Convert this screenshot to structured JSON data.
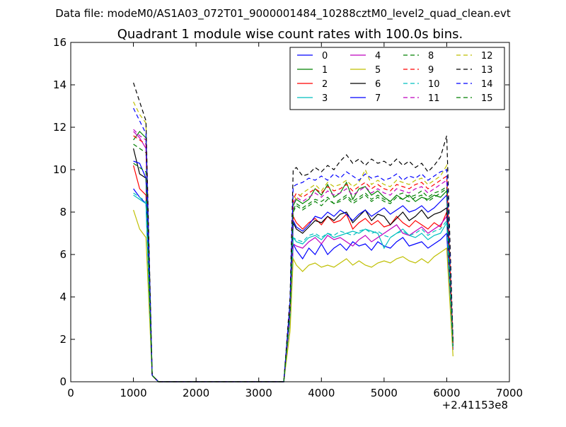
{
  "header": {
    "data_file": "Data file: modeM0/AS1A03_072T01_9000001484_10288cztM0_level2_quad_clean.evt"
  },
  "chart_data": {
    "type": "line",
    "title": "Quadrant 1 module wise count rates with 100.0s bins.",
    "xlabel": "",
    "ylabel": "",
    "x_offset_label": "+2.41153e8",
    "xlim": [
      0,
      7000
    ],
    "ylim": [
      0,
      16
    ],
    "x_ticks": [
      0,
      1000,
      2000,
      3000,
      4000,
      5000,
      6000,
      7000
    ],
    "y_ticks": [
      0,
      2,
      4,
      6,
      8,
      10,
      12,
      14,
      16
    ],
    "grid": false,
    "legend_position": "top-right",
    "x": [
      1000,
      1100,
      1200,
      1300,
      1400,
      1500,
      1600,
      1700,
      1800,
      1900,
      2000,
      2100,
      2200,
      2300,
      2400,
      2500,
      2600,
      2700,
      2800,
      2900,
      3000,
      3100,
      3200,
      3300,
      3400,
      3500,
      3550,
      3600,
      3700,
      3800,
      3900,
      4000,
      4100,
      4200,
      4300,
      4400,
      4500,
      4600,
      4700,
      4800,
      4900,
      5000,
      5100,
      5200,
      5300,
      5400,
      5500,
      5600,
      5700,
      5800,
      5900,
      6000,
      6100
    ],
    "series": [
      {
        "name": "0",
        "color": "#0000ff",
        "dash": "solid",
        "values": [
          9.1,
          8.7,
          8.4,
          0.3,
          0,
          0,
          0,
          0,
          0,
          0,
          0,
          0,
          0,
          0,
          0,
          0,
          0,
          0,
          0,
          0,
          0,
          0,
          0,
          0,
          0,
          3.0,
          6.5,
          6.2,
          5.8,
          6.3,
          6.0,
          6.5,
          6.0,
          6.3,
          6.5,
          6.2,
          6.6,
          6.4,
          6.5,
          6.2,
          6.6,
          6.4,
          6.3,
          6.6,
          6.8,
          6.4,
          6.5,
          6.6,
          6.3,
          6.5,
          6.7,
          7.0,
          1.5
        ]
      },
      {
        "name": "1",
        "color": "#008000",
        "dash": "solid",
        "values": [
          11.4,
          11.8,
          11.5,
          0.3,
          0,
          0,
          0,
          0,
          0,
          0,
          0,
          0,
          0,
          0,
          0,
          0,
          0,
          0,
          0,
          0,
          0,
          0,
          0,
          0,
          0,
          3.5,
          8.3,
          8.6,
          8.4,
          8.6,
          9.1,
          8.8,
          9.3,
          8.7,
          8.9,
          9.4,
          8.6,
          9.1,
          9.2,
          8.8,
          9.0,
          8.7,
          8.5,
          8.8,
          8.6,
          8.8,
          8.5,
          8.7,
          8.6,
          8.8,
          8.7,
          9.0,
          1.8
        ]
      },
      {
        "name": "2",
        "color": "#ff0000",
        "dash": "solid",
        "values": [
          10.2,
          9.1,
          8.8,
          0.3,
          0,
          0,
          0,
          0,
          0,
          0,
          0,
          0,
          0,
          0,
          0,
          0,
          0,
          0,
          0,
          0,
          0,
          0,
          0,
          0,
          0,
          3.2,
          7.8,
          7.5,
          7.2,
          7.5,
          7.7,
          7.4,
          7.8,
          7.5,
          7.6,
          7.9,
          7.2,
          7.5,
          7.7,
          7.4,
          7.6,
          7.3,
          7.4,
          7.8,
          7.5,
          7.3,
          7.6,
          7.4,
          7.2,
          7.5,
          7.3,
          8.0,
          1.6
        ]
      },
      {
        "name": "3",
        "color": "#00bfbf",
        "dash": "solid",
        "values": [
          8.8,
          8.6,
          8.4,
          0.3,
          0,
          0,
          0,
          0,
          0,
          0,
          0,
          0,
          0,
          0,
          0,
          0,
          0,
          0,
          0,
          0,
          0,
          0,
          0,
          0,
          0,
          3.0,
          6.8,
          6.6,
          6.5,
          6.8,
          6.9,
          6.7,
          7.0,
          6.8,
          6.9,
          7.0,
          7.1,
          7.0,
          7.2,
          7.1,
          7.0,
          6.3,
          6.8,
          7.0,
          7.2,
          6.9,
          6.8,
          7.0,
          6.7,
          6.9,
          7.0,
          7.5,
          1.5
        ]
      },
      {
        "name": "4",
        "color": "#bf00bf",
        "dash": "solid",
        "values": [
          11.8,
          11.5,
          11.0,
          0.3,
          0,
          0,
          0,
          0,
          0,
          0,
          0,
          0,
          0,
          0,
          0,
          0,
          0,
          0,
          0,
          0,
          0,
          0,
          0,
          0,
          0,
          3.1,
          6.5,
          6.4,
          6.3,
          6.6,
          6.8,
          6.5,
          6.9,
          6.7,
          6.8,
          6.6,
          6.4,
          6.7,
          6.9,
          6.6,
          6.8,
          7.0,
          7.2,
          7.4,
          7.0,
          6.9,
          7.1,
          7.3,
          7.0,
          7.2,
          7.4,
          7.8,
          1.5
        ]
      },
      {
        "name": "5",
        "color": "#bfbf00",
        "dash": "solid",
        "values": [
          8.1,
          7.2,
          6.8,
          0.3,
          0,
          0,
          0,
          0,
          0,
          0,
          0,
          0,
          0,
          0,
          0,
          0,
          0,
          0,
          0,
          0,
          0,
          0,
          0,
          0,
          0,
          2.4,
          5.8,
          5.5,
          5.2,
          5.5,
          5.6,
          5.4,
          5.5,
          5.4,
          5.6,
          5.8,
          5.5,
          5.7,
          5.5,
          5.4,
          5.6,
          5.7,
          5.6,
          5.8,
          5.9,
          5.7,
          5.6,
          5.8,
          5.6,
          5.9,
          6.1,
          6.3,
          1.2
        ]
      },
      {
        "name": "6",
        "color": "#000000",
        "dash": "solid",
        "values": [
          11.0,
          9.8,
          9.6,
          0.3,
          0,
          0,
          0,
          0,
          0,
          0,
          0,
          0,
          0,
          0,
          0,
          0,
          0,
          0,
          0,
          0,
          0,
          0,
          0,
          0,
          0,
          3.4,
          7.5,
          7.2,
          7.0,
          7.3,
          7.6,
          7.5,
          7.8,
          7.6,
          7.9,
          8.0,
          7.5,
          7.8,
          8.1,
          7.6,
          7.9,
          7.8,
          7.4,
          7.7,
          8.0,
          7.6,
          7.8,
          8.1,
          7.7,
          7.9,
          8.0,
          8.2,
          1.7
        ]
      },
      {
        "name": "7",
        "color": "#0000ff",
        "dash": "solid",
        "values": [
          10.4,
          10.3,
          9.6,
          0.3,
          0,
          0,
          0,
          0,
          0,
          0,
          0,
          0,
          0,
          0,
          0,
          0,
          0,
          0,
          0,
          0,
          0,
          0,
          0,
          0,
          0,
          3.3,
          7.6,
          7.3,
          7.1,
          7.4,
          7.8,
          7.7,
          8.0,
          7.8,
          8.1,
          7.9,
          7.6,
          7.9,
          8.1,
          7.8,
          8.0,
          8.2,
          7.9,
          8.1,
          8.3,
          8.0,
          8.1,
          8.3,
          8.0,
          8.2,
          8.5,
          8.8,
          1.7
        ]
      },
      {
        "name": "8",
        "color": "#008000",
        "dash": "dashed",
        "values": [
          11.2,
          11.0,
          10.8,
          0.3,
          0,
          0,
          0,
          0,
          0,
          0,
          0,
          0,
          0,
          0,
          0,
          0,
          0,
          0,
          0,
          0,
          0,
          0,
          0,
          0,
          0,
          3.5,
          8.1,
          8.4,
          8.2,
          8.4,
          8.6,
          8.5,
          8.7,
          8.4,
          8.6,
          8.8,
          8.5,
          8.7,
          8.9,
          8.6,
          8.8,
          8.6,
          8.5,
          8.8,
          8.9,
          8.7,
          8.8,
          9.0,
          8.7,
          8.9,
          9.0,
          9.2,
          1.8
        ]
      },
      {
        "name": "9",
        "color": "#ff0000",
        "dash": "dashed",
        "values": [
          11.6,
          11.4,
          11.2,
          0.3,
          0,
          0,
          0,
          0,
          0,
          0,
          0,
          0,
          0,
          0,
          0,
          0,
          0,
          0,
          0,
          0,
          0,
          0,
          0,
          0,
          0,
          3.5,
          8.6,
          8.9,
          8.7,
          8.9,
          9.1,
          8.9,
          9.2,
          9.0,
          9.1,
          9.3,
          9.0,
          9.2,
          9.4,
          9.1,
          9.3,
          9.1,
          9.0,
          9.3,
          9.2,
          9.1,
          9.3,
          9.4,
          9.1,
          9.3,
          9.5,
          9.7,
          1.8
        ]
      },
      {
        "name": "10",
        "color": "#00bfbf",
        "dash": "dashed",
        "values": [
          8.9,
          8.7,
          8.5,
          0.3,
          0,
          0,
          0,
          0,
          0,
          0,
          0,
          0,
          0,
          0,
          0,
          0,
          0,
          0,
          0,
          0,
          0,
          0,
          0,
          0,
          0,
          3.1,
          6.8,
          6.7,
          6.6,
          6.9,
          7.0,
          6.8,
          7.0,
          6.9,
          7.1,
          7.0,
          6.9,
          7.1,
          7.2,
          7.0,
          7.1,
          6.9,
          6.8,
          7.0,
          7.1,
          6.9,
          7.0,
          7.2,
          6.9,
          7.1,
          7.2,
          7.6,
          1.5
        ]
      },
      {
        "name": "11",
        "color": "#bf00bf",
        "dash": "dashed",
        "values": [
          11.9,
          11.6,
          11.4,
          0.3,
          0,
          0,
          0,
          0,
          0,
          0,
          0,
          0,
          0,
          0,
          0,
          0,
          0,
          0,
          0,
          0,
          0,
          0,
          0,
          0,
          0,
          3.4,
          8.4,
          8.7,
          8.5,
          8.7,
          8.9,
          8.7,
          9.0,
          8.8,
          8.9,
          9.1,
          8.8,
          9.0,
          9.2,
          8.9,
          9.1,
          8.9,
          8.8,
          9.1,
          9.0,
          8.9,
          9.1,
          9.2,
          8.9,
          9.1,
          9.3,
          9.5,
          1.8
        ]
      },
      {
        "name": "12",
        "color": "#bfbf00",
        "dash": "dashed",
        "values": [
          13.2,
          12.6,
          12.2,
          0.3,
          0,
          0,
          0,
          0,
          0,
          0,
          0,
          0,
          0,
          0,
          0,
          0,
          0,
          0,
          0,
          0,
          0,
          0,
          0,
          0,
          0,
          3.6,
          8.8,
          8.6,
          8.9,
          9.1,
          9.3,
          9.0,
          9.4,
          9.2,
          9.3,
          9.5,
          9.2,
          9.4,
          10.0,
          9.3,
          9.5,
          9.3,
          9.2,
          9.5,
          9.4,
          9.3,
          9.5,
          9.6,
          9.3,
          9.5,
          9.7,
          10.2,
          1.9
        ]
      },
      {
        "name": "13",
        "color": "#000000",
        "dash": "dashed",
        "values": [
          14.1,
          13.2,
          12.3,
          0.3,
          0,
          0,
          0,
          0,
          0,
          0,
          0,
          0,
          0,
          0,
          0,
          0,
          0,
          0,
          0,
          0,
          0,
          0,
          0,
          0,
          0,
          4.0,
          10.0,
          10.1,
          9.7,
          9.8,
          10.1,
          9.9,
          10.2,
          10.0,
          10.4,
          10.7,
          10.3,
          10.5,
          10.2,
          10.5,
          10.3,
          10.4,
          10.2,
          10.5,
          10.2,
          10.4,
          10.1,
          10.3,
          9.9,
          10.2,
          10.6,
          11.6,
          2.0
        ]
      },
      {
        "name": "14",
        "color": "#0000ff",
        "dash": "dashed",
        "values": [
          12.9,
          12.3,
          11.7,
          0.3,
          0,
          0,
          0,
          0,
          0,
          0,
          0,
          0,
          0,
          0,
          0,
          0,
          0,
          0,
          0,
          0,
          0,
          0,
          0,
          0,
          0,
          3.8,
          9.2,
          9.3,
          9.4,
          9.6,
          9.5,
          9.7,
          9.5,
          9.8,
          9.6,
          9.9,
          9.7,
          9.5,
          9.8,
          9.6,
          9.7,
          9.5,
          9.6,
          9.8,
          9.5,
          9.7,
          9.6,
          9.8,
          9.5,
          9.7,
          9.9,
          10.0,
          1.9
        ]
      },
      {
        "name": "15",
        "color": "#008000",
        "dash": "dashed",
        "values": [
          10.3,
          10.1,
          9.9,
          0.3,
          0,
          0,
          0,
          0,
          0,
          0,
          0,
          0,
          0,
          0,
          0,
          0,
          0,
          0,
          0,
          0,
          0,
          0,
          0,
          0,
          0,
          3.3,
          8.0,
          8.3,
          8.1,
          8.3,
          8.5,
          8.3,
          8.6,
          8.4,
          8.5,
          8.7,
          8.4,
          8.6,
          8.8,
          8.5,
          8.7,
          8.5,
          8.4,
          8.7,
          8.6,
          8.5,
          8.7,
          8.8,
          8.5,
          8.7,
          8.9,
          9.1,
          1.7
        ]
      }
    ]
  }
}
